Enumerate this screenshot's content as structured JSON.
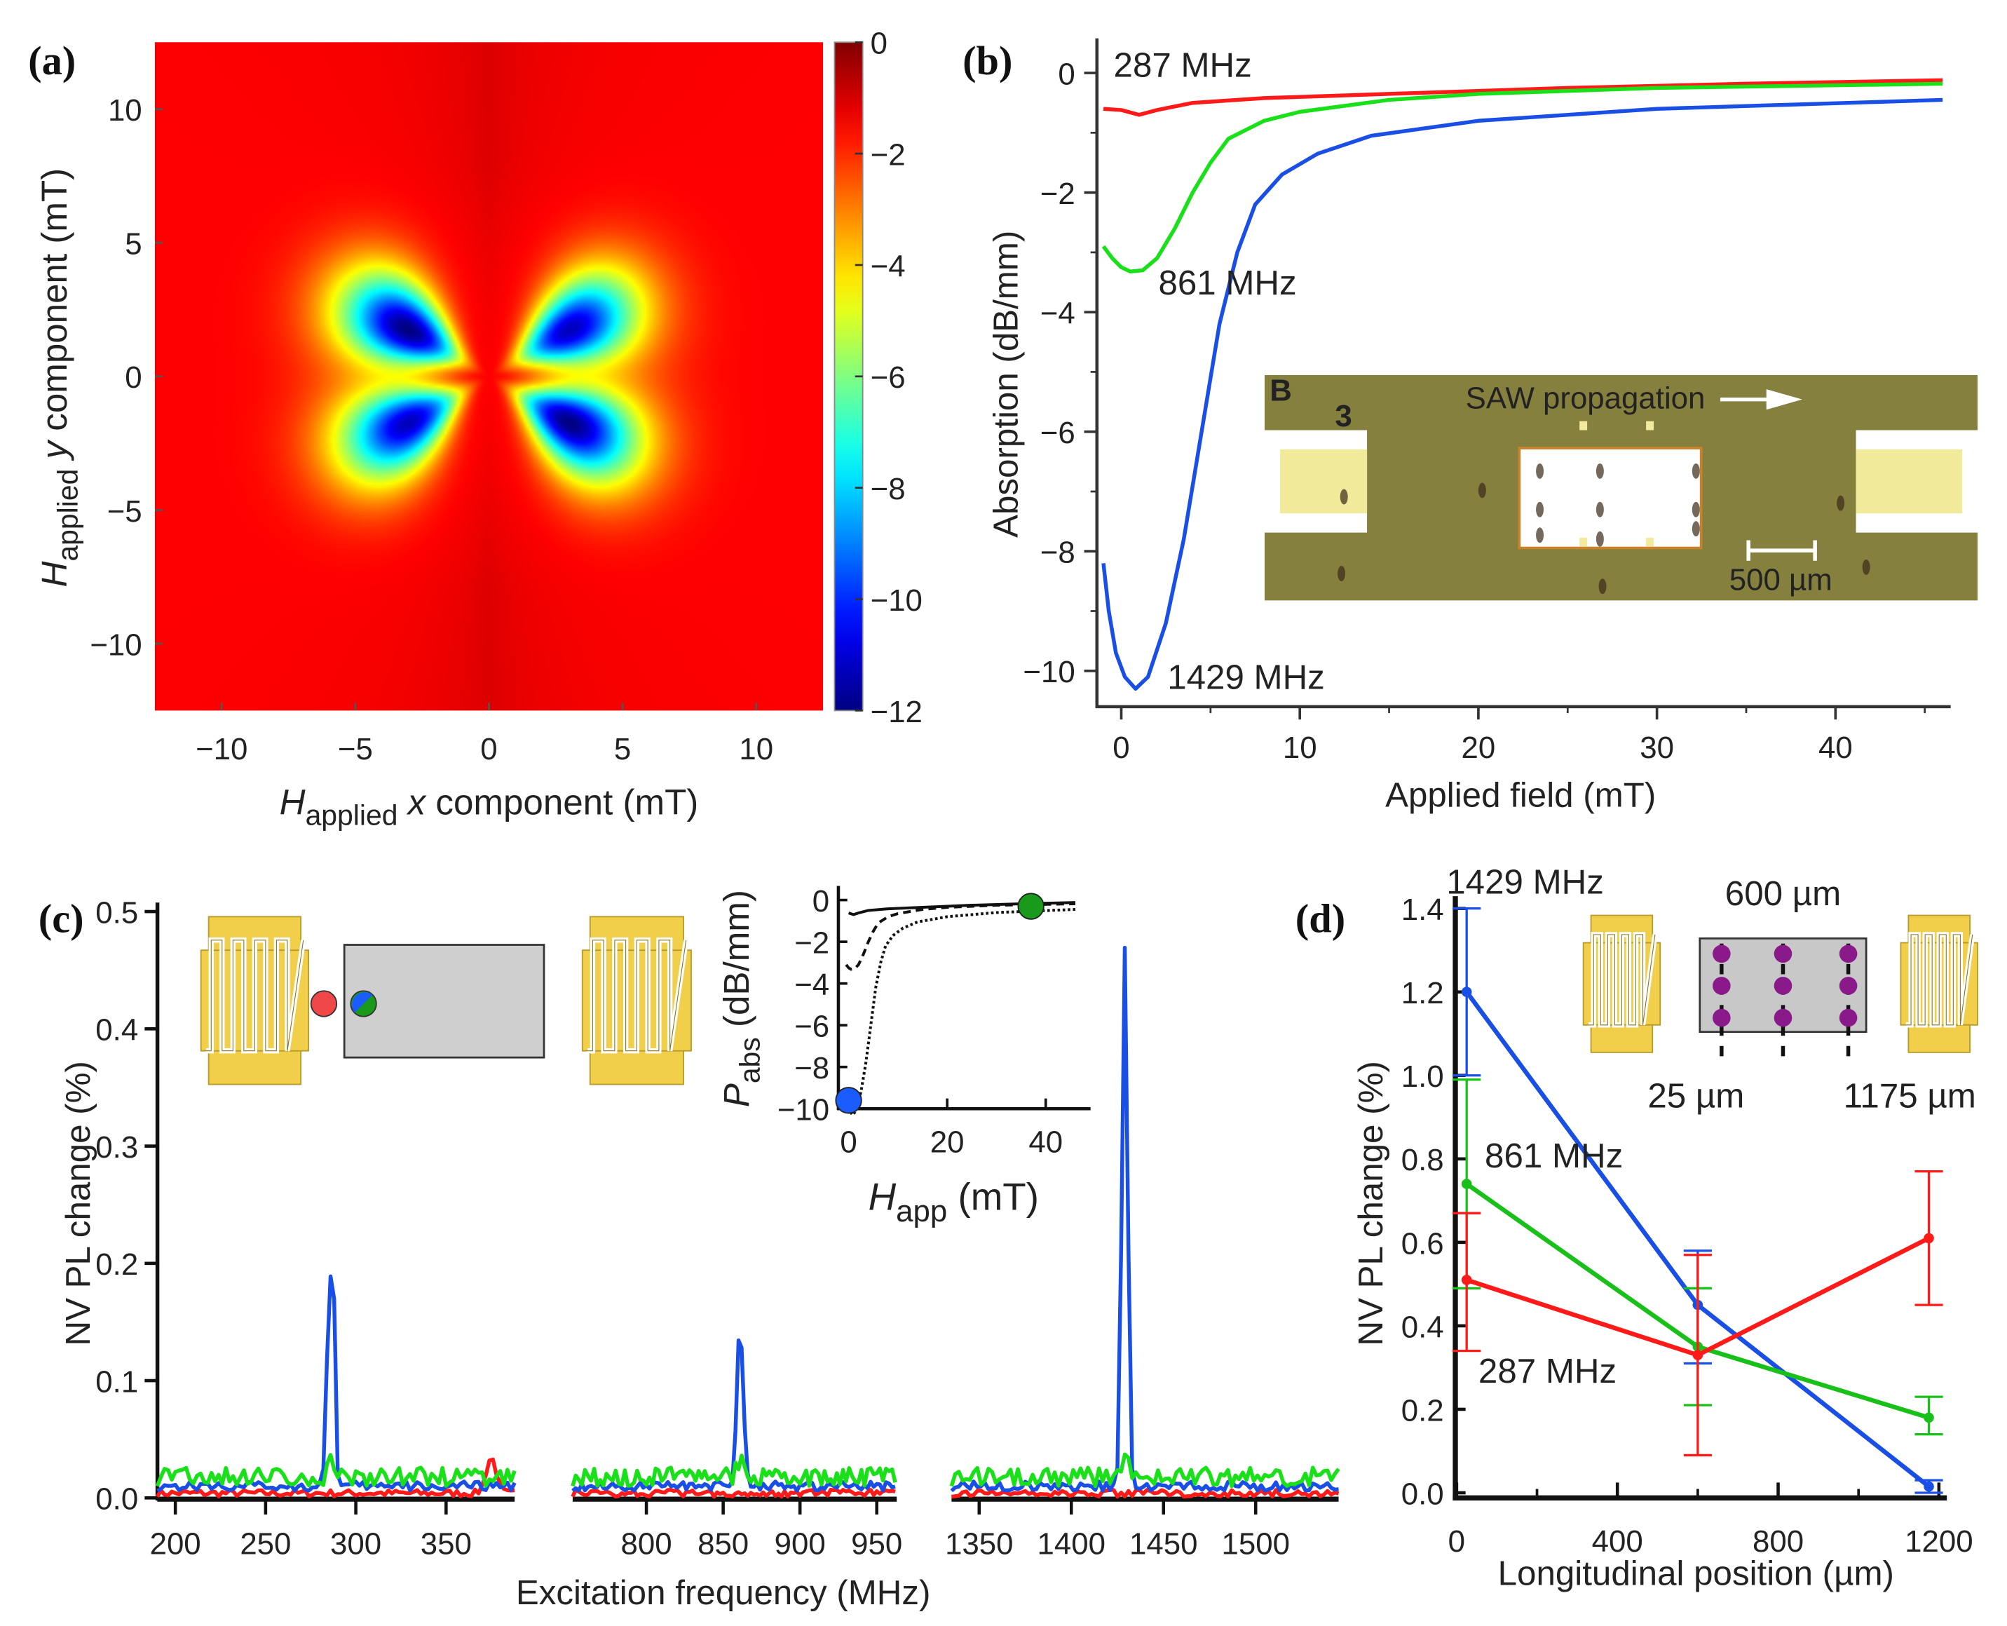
{
  "panels": {
    "a": "(a)",
    "b": "(b)",
    "c": "(c)",
    "d": "(d)"
  },
  "chart_data": [
    {
      "type": "heatmap",
      "panel": "a",
      "xlabel": {
        "sym": "H",
        "sub": "applied",
        "var": "x",
        "rest": " component (mT)"
      },
      "ylabel": {
        "sym": "H",
        "sub": "applied",
        "var": "y",
        "rest": " component (mT)"
      },
      "xlim": [
        -12.5,
        12.5
      ],
      "ylim": [
        -12.5,
        12.5
      ],
      "xticks": [
        -10,
        -5,
        0,
        5,
        10
      ],
      "xtick_labels": [
        "−10",
        "−5",
        "0",
        "5",
        "10"
      ],
      "yticks": [
        10,
        5,
        0,
        -5,
        -10
      ],
      "ytick_labels": [
        "10",
        "5",
        "0",
        "−5",
        "−10"
      ],
      "colorbar": {
        "clim": [
          -12,
          0
        ],
        "ticks": [
          0,
          -2,
          -4,
          -6,
          -8,
          -10,
          -12
        ],
        "tick_labels": [
          "0",
          "−2",
          "−4",
          "−6",
          "−8",
          "−10",
          "−12"
        ],
        "colormap": "jet"
      },
      "model": {
        "background": -1.5,
        "lobe_peak_radius_mT": 3.5,
        "lobes": [
          {
            "angle_deg": 150,
            "min": -12
          },
          {
            "angle_deg": -30,
            "min": -12
          },
          {
            "angle_deg": 30,
            "min": -11.3
          },
          {
            "angle_deg": 210,
            "min": -11.3
          }
        ]
      }
    },
    {
      "type": "line",
      "panel": "b",
      "xlabel": "Applied field (mT)",
      "ylabel": "Absorption (dB/mm)",
      "xlim": [
        -1.4,
        46.5
      ],
      "ylim": [
        -10.6,
        0.58
      ],
      "xticks": [
        0,
        10,
        20,
        30,
        40
      ],
      "xtick_labels": [
        "0",
        "10",
        "20",
        "30",
        "40"
      ],
      "yticks": [
        0,
        -2,
        -4,
        -6,
        -8,
        -10
      ],
      "ytick_labels": [
        "0",
        "−2",
        "−4",
        "−6",
        "−8",
        "−10"
      ],
      "series": [
        {
          "name": "287 MHz",
          "color": "#ff1a1a",
          "points": [
            [
              -1,
              -0.6
            ],
            [
              0,
              -0.62
            ],
            [
              1,
              -0.7
            ],
            [
              2,
              -0.62
            ],
            [
              4,
              -0.5
            ],
            [
              8,
              -0.42
            ],
            [
              15,
              -0.35
            ],
            [
              25,
              -0.25
            ],
            [
              35,
              -0.18
            ],
            [
              46,
              -0.12
            ]
          ]
        },
        {
          "name": "861 MHz",
          "color": "#19e019",
          "points": [
            [
              -1,
              -2.9
            ],
            [
              -0.5,
              -3.1
            ],
            [
              0,
              -3.25
            ],
            [
              0.5,
              -3.32
            ],
            [
              1.2,
              -3.3
            ],
            [
              2,
              -3.1
            ],
            [
              3,
              -2.6
            ],
            [
              4,
              -2.0
            ],
            [
              5,
              -1.5
            ],
            [
              6,
              -1.1
            ],
            [
              8,
              -0.8
            ],
            [
              10,
              -0.65
            ],
            [
              15,
              -0.45
            ],
            [
              20,
              -0.35
            ],
            [
              30,
              -0.25
            ],
            [
              46,
              -0.18
            ]
          ]
        },
        {
          "name": "1429 MHz",
          "color": "#1a4fe6",
          "points": [
            [
              -1,
              -8.2
            ],
            [
              -0.7,
              -9.0
            ],
            [
              -0.3,
              -9.7
            ],
            [
              0.2,
              -10.1
            ],
            [
              0.8,
              -10.3
            ],
            [
              1.5,
              -10.1
            ],
            [
              2.5,
              -9.2
            ],
            [
              3.5,
              -7.8
            ],
            [
              4.5,
              -6.0
            ],
            [
              5.5,
              -4.2
            ],
            [
              6.5,
              -3.0
            ],
            [
              7.5,
              -2.2
            ],
            [
              9,
              -1.7
            ],
            [
              11,
              -1.35
            ],
            [
              14,
              -1.05
            ],
            [
              20,
              -0.8
            ],
            [
              30,
              -0.6
            ],
            [
              46,
              -0.45
            ]
          ]
        }
      ],
      "inset_photo": {
        "panel_letter": "B",
        "number": "3",
        "arrow_text": "SAW propagation",
        "scale_bar": "500 µm"
      }
    },
    {
      "type": "line",
      "panel": "c",
      "xlabel": "Excitation frequency (MHz)",
      "ylabel": "NV PL change (%)",
      "ylim": [
        0,
        0.5
      ],
      "yticks": [
        0,
        0.1,
        0.2,
        0.3,
        0.4,
        0.5
      ],
      "ytick_labels": [
        "0.0",
        "0.1",
        "0.2",
        "0.3",
        "0.4",
        "0.5"
      ],
      "segments": [
        {
          "xlim": [
            190,
            388
          ],
          "xticks": [
            200,
            250,
            300,
            350
          ],
          "xtick_labels": [
            "200",
            "250",
            "300",
            "350"
          ]
        },
        {
          "xlim": [
            752,
            963
          ],
          "xticks": [
            800,
            850,
            900,
            950
          ],
          "xtick_labels": [
            "800",
            "850",
            "900",
            "950"
          ]
        },
        {
          "xlim": [
            1335,
            1545
          ],
          "xticks": [
            1350,
            1400,
            1450,
            1500
          ],
          "xtick_labels": [
            "1350",
            "1400",
            "1450",
            "1500"
          ]
        }
      ],
      "series": [
        {
          "name": "red",
          "color": "#ff1a1a",
          "baseline": 0.004,
          "noise": 0.003,
          "peaks": [
            [
              375,
              0.03,
              4
            ]
          ]
        },
        {
          "name": "blue",
          "color": "#1a4fe6",
          "baseline": 0.01,
          "noise": 0.004,
          "peaks": [
            [
              284,
              0.1,
              1.5
            ],
            [
              287,
              0.24,
              1.6
            ],
            [
              861,
              0.135,
              3
            ],
            [
              1429,
              0.46,
              2.2
            ]
          ]
        },
        {
          "name": "green",
          "color": "#19e019",
          "baseline": 0.018,
          "noise": 0.008,
          "peaks": [
            [
              287,
              0.012,
              3
            ],
            [
              861,
              0.012,
              3
            ],
            [
              1429,
              0.015,
              3
            ]
          ]
        }
      ],
      "inset": {
        "xlabel": {
          "sym": "H",
          "sub": "app",
          "rest": " (mT)"
        },
        "ylabel": {
          "sym": "P",
          "sub": "abs",
          "rest": "(dB/mm)"
        },
        "xlim": [
          -2,
          49
        ],
        "ylim": [
          -10.8,
          0.5
        ],
        "xticks": [
          0,
          20,
          40
        ],
        "xtick_labels": [
          "0",
          "20",
          "40"
        ],
        "yticks": [
          0,
          -2,
          -4,
          -6,
          -8,
          -10
        ],
        "ytick_labels": [
          "0",
          "−2",
          "−4",
          "−6",
          "−8",
          "−10"
        ],
        "curve_styles": [
          "solid",
          "dashed",
          "dotted"
        ],
        "markers": [
          {
            "x": 0,
            "y": -9.6,
            "color": "#1a5cff"
          },
          {
            "x": 37,
            "y": -0.3,
            "color": "#1a9a1a"
          }
        ]
      }
    },
    {
      "type": "line",
      "panel": "d",
      "xlabel": "Longitudinal position (µm)",
      "ylabel": "NV PL change (%)",
      "xlim": [
        0,
        1230
      ],
      "ylim": [
        0,
        1.4
      ],
      "xticks": [
        0,
        400,
        800,
        1200
      ],
      "xtick_labels": [
        "0",
        "400",
        "800",
        "1200"
      ],
      "yticks": [
        0,
        0.2,
        0.4,
        0.6,
        0.8,
        1.0,
        1.2,
        1.4
      ],
      "ytick_labels": [
        "0.0",
        "0.2",
        "0.4",
        "0.6",
        "0.8",
        "1.0",
        "1.2",
        "1.4"
      ],
      "series": [
        {
          "name": "1429 MHz",
          "color": "#1a4fe6",
          "x": [
            25,
            600,
            1175
          ],
          "y": [
            1.2,
            0.45,
            0.015
          ],
          "err_low": [
            1.0,
            0.31,
            0.0
          ],
          "err_high": [
            1.4,
            0.58,
            0.03
          ]
        },
        {
          "name": "861 MHz",
          "color": "#19c019",
          "x": [
            25,
            600,
            1175
          ],
          "y": [
            0.74,
            0.35,
            0.18
          ],
          "err_low": [
            0.49,
            0.21,
            0.14
          ],
          "err_high": [
            0.99,
            0.49,
            0.23
          ]
        },
        {
          "name": "287 MHz",
          "color": "#ff1a1a",
          "x": [
            25,
            600,
            1175
          ],
          "y": [
            0.51,
            0.33,
            0.61
          ],
          "err_low": [
            0.34,
            0.09,
            0.45
          ],
          "err_high": [
            0.67,
            0.57,
            0.77
          ]
        }
      ],
      "inset": {
        "top_label": "600 µm",
        "left_label": "25 µm",
        "right_label": "1175 µm"
      }
    }
  ]
}
